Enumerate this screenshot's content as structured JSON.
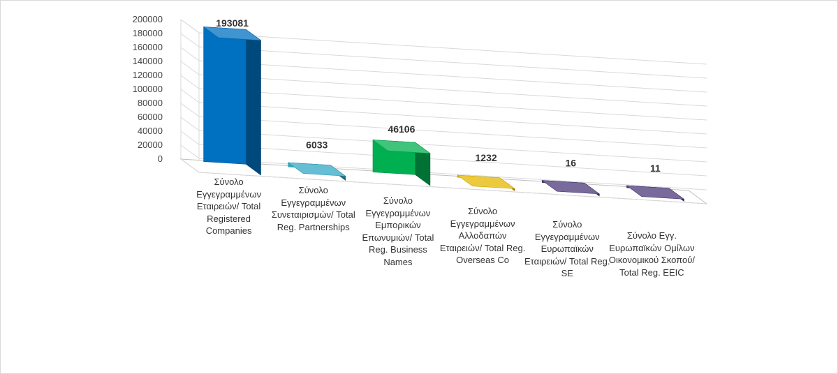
{
  "chart_data": {
    "type": "bar",
    "title": "",
    "xlabel": "",
    "ylabel": "",
    "ylim": [
      0,
      200000
    ],
    "yticks": [
      0,
      20000,
      40000,
      60000,
      80000,
      100000,
      120000,
      140000,
      160000,
      180000,
      200000
    ],
    "grid": true,
    "legend": "none",
    "style": "3d-column",
    "categories": [
      "Σύνολο Εγγεγραμμένων Εταιρειών/ Total Registered Companies",
      "Σύνολο Εγγεγραμμένων Συνεταιρισμών/ Total Reg. Partnerships",
      "Σύνολο Εγγεγραμμένων Εμπορικών Επωνυμιών/ Total Reg. Business Names",
      "Σύνολο Εγγεγραμμένων Αλλοδαπών Εταιρειών/ Total Reg. Overseas Co",
      "Σύνολο Εγγεγραμμένων Ευρωπαϊκών Εταιρειών/ Total Reg. SE",
      "Σύνολο Εγγ. Ευρωπαϊκών Ομίλων Οικονομικού Σκοπού/ Total Reg. EEIC"
    ],
    "values": [
      193081,
      6033,
      46106,
      1232,
      16,
      11
    ],
    "data_labels": [
      "193081",
      "6033",
      "46106",
      "1232",
      "16",
      "11"
    ],
    "colors": [
      "#0070c0",
      "#31a8c4",
      "#00b050",
      "#e5b800",
      "#4b3a7a",
      "#4b3a7a"
    ]
  }
}
